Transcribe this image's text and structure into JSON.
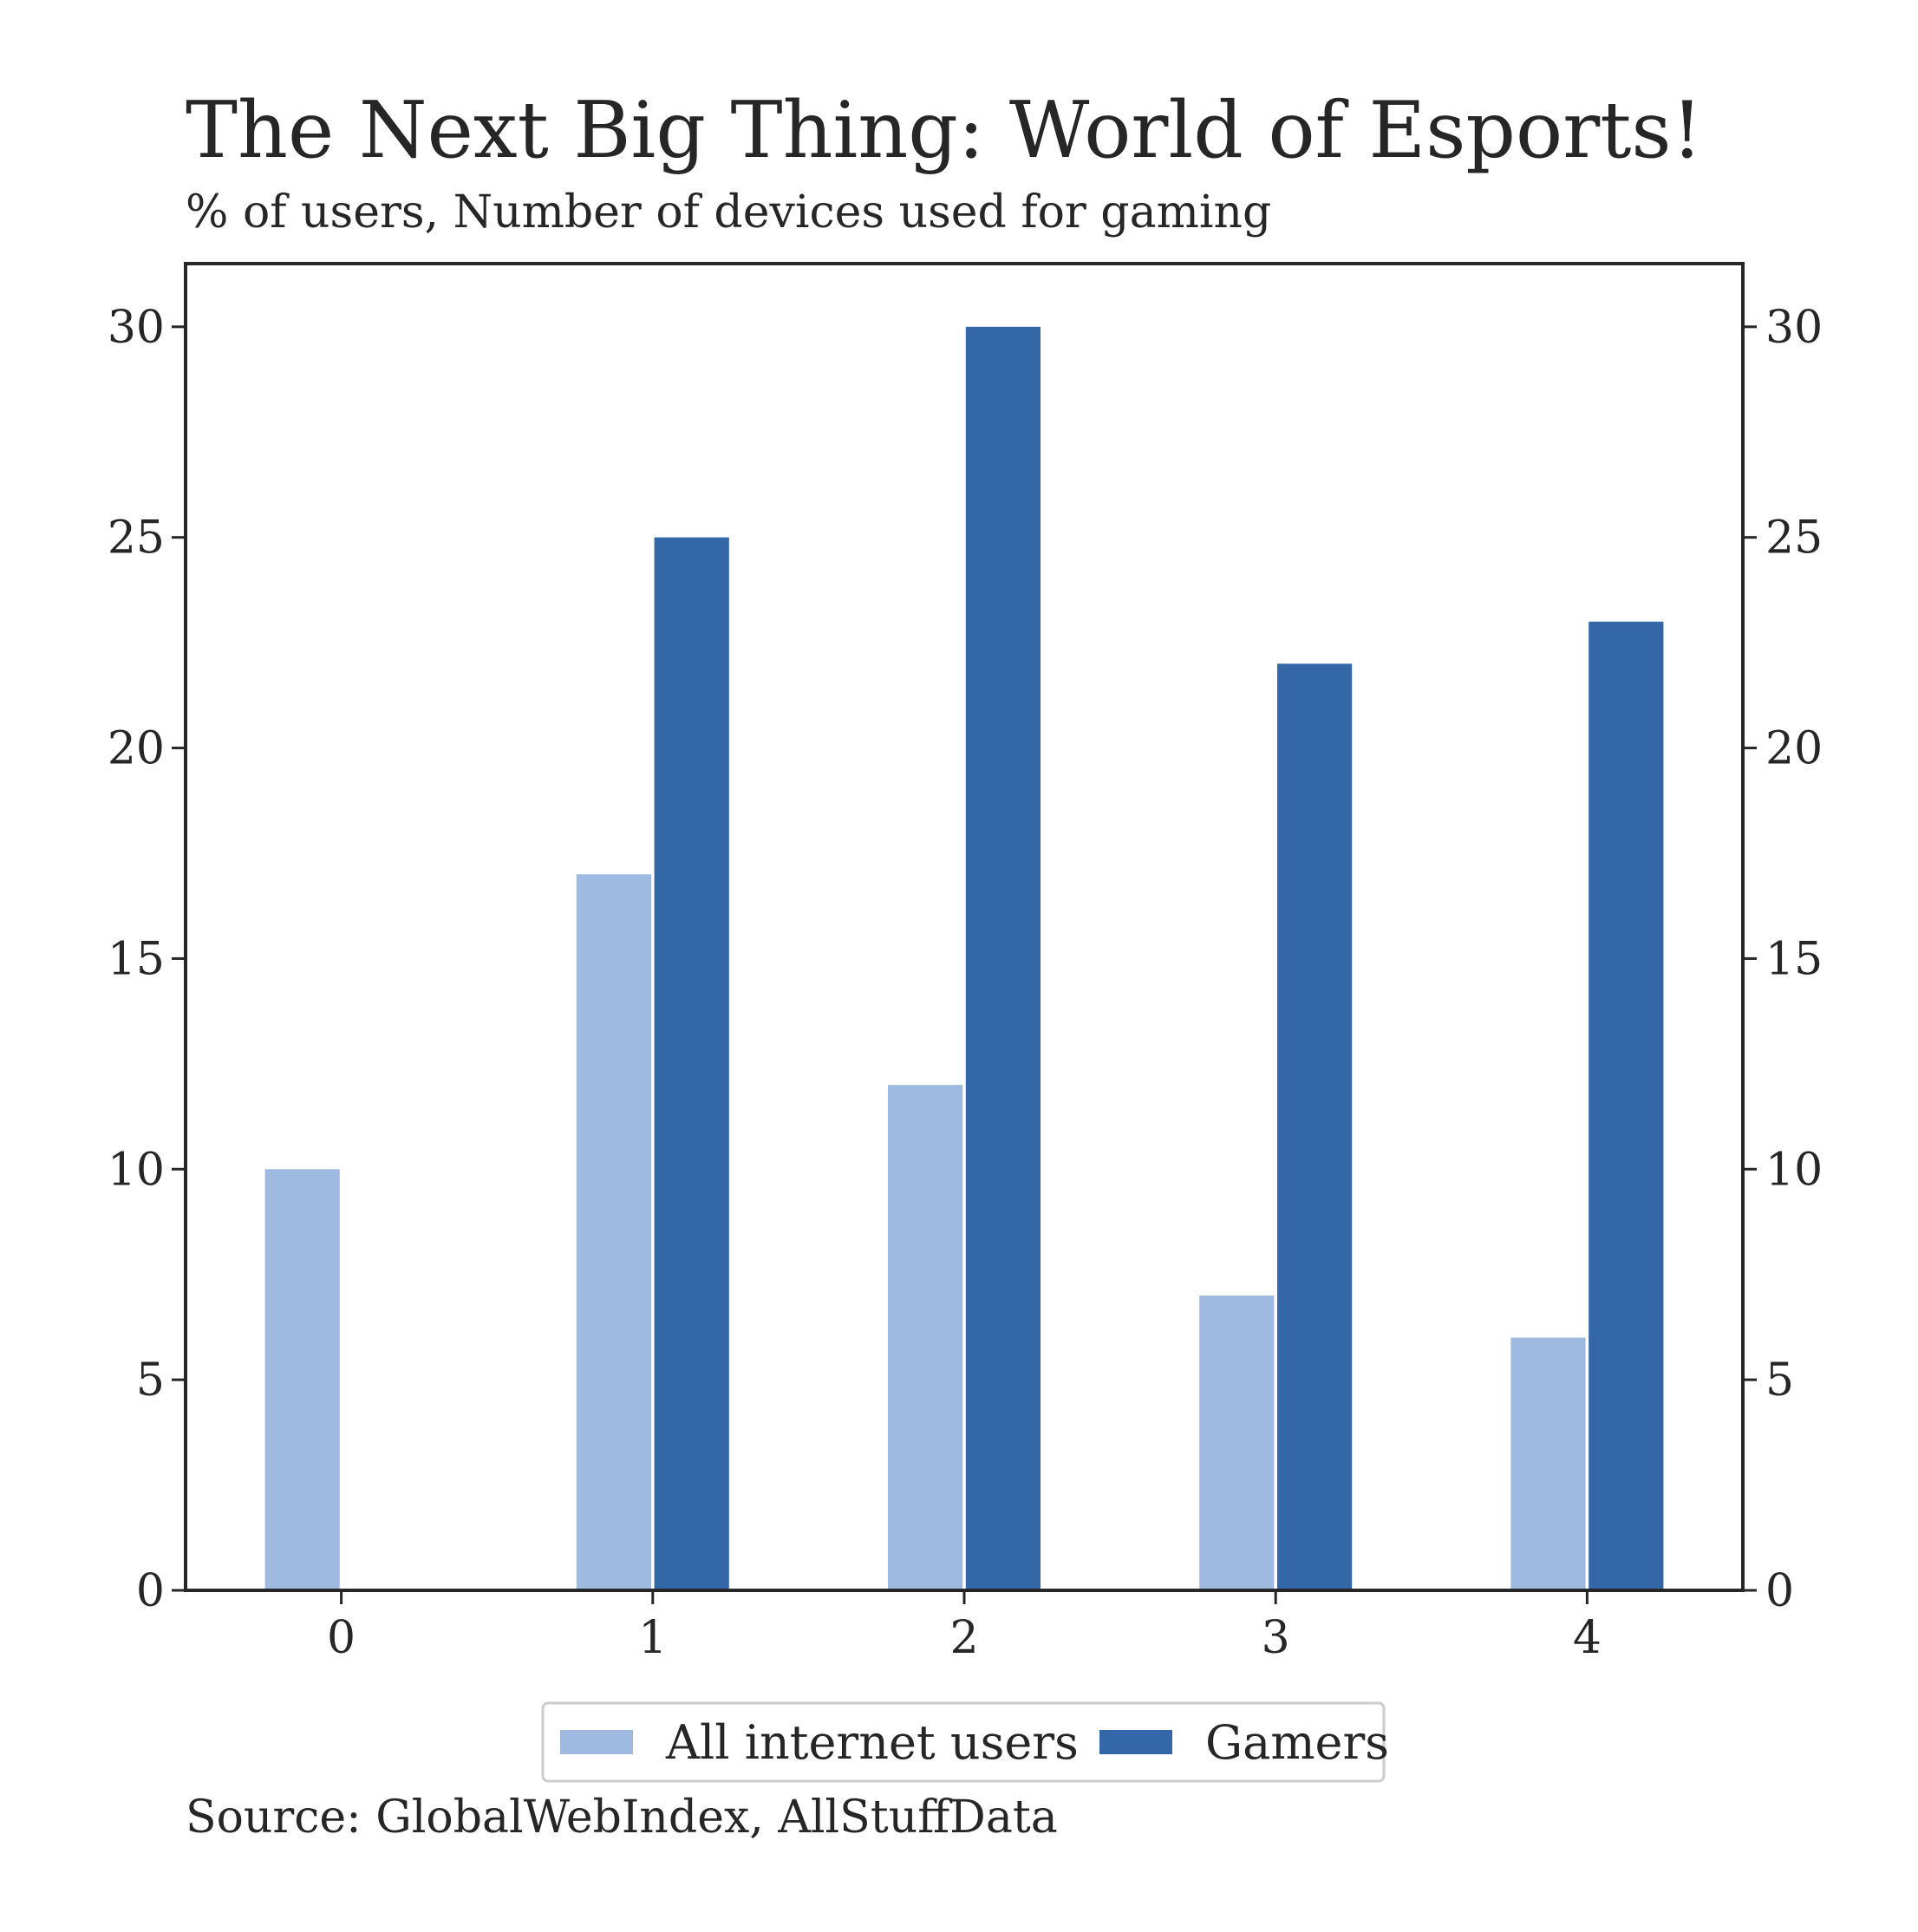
{
  "chart_data": {
    "type": "bar",
    "title": "The Next Big Thing: World of Esports!",
    "subtitle": "% of users, Number of devices used for gaming",
    "categories": [
      "0",
      "1",
      "2",
      "3",
      "4"
    ],
    "series": [
      {
        "name": "All internet users",
        "color": "#9fbae0",
        "values": [
          10,
          17,
          12,
          7,
          6
        ]
      },
      {
        "name": "Gamers",
        "color": "#3467a8",
        "values": [
          0,
          25,
          30,
          22,
          23
        ]
      }
    ],
    "ylim": [
      0,
      31.5
    ],
    "yticks": [
      0,
      5,
      10,
      15,
      20,
      25,
      30
    ],
    "ytick_labels": [
      "0",
      "5",
      "10",
      "15",
      "20",
      "25",
      "30"
    ],
    "right_axis_ticks": true,
    "grid": false,
    "legend_position": "bottom-center",
    "source": "Source: GlobalWebIndex, AllStuffData"
  }
}
